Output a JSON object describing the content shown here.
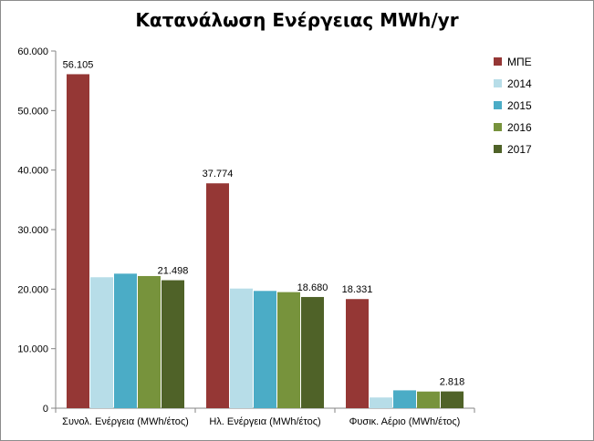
{
  "chart_data": {
    "type": "bar",
    "title": "Κατανάλωση Ενέργειας MWh/yr",
    "categories": [
      "Συνολ. Ενέργεια (MWh/έτος)",
      "Ηλ. Ενέργεια (MWh/έτος)",
      "Φυσικ. Αέριο (MWh/έτος)"
    ],
    "series": [
      {
        "name": "ΜΠΕ",
        "color": "#953735",
        "values": [
          56105,
          37774,
          18331
        ],
        "labels": [
          "56.105",
          "37.774",
          "18.331"
        ]
      },
      {
        "name": "2014",
        "color": "#b7dde8",
        "values": [
          22000,
          20100,
          1800
        ],
        "labels": [
          "",
          "",
          ""
        ]
      },
      {
        "name": "2015",
        "color": "#4bacc6",
        "values": [
          22600,
          19700,
          3000
        ],
        "labels": [
          "",
          "",
          ""
        ]
      },
      {
        "name": "2016",
        "color": "#77933c",
        "values": [
          22200,
          19500,
          2800
        ],
        "labels": [
          "",
          "",
          ""
        ]
      },
      {
        "name": "2017",
        "color": "#4f6228",
        "values": [
          21498,
          18680,
          2818
        ],
        "labels": [
          "21.498",
          "18.680",
          "2.818"
        ]
      }
    ],
    "ylim": [
      0,
      60000
    ],
    "yticks": [
      0,
      10000,
      20000,
      30000,
      40000,
      50000,
      60000
    ],
    "ytick_labels": [
      "0",
      "10.000",
      "20.000",
      "30.000",
      "40.000",
      "50.000",
      "60.000"
    ],
    "grid": false,
    "legend": "right"
  }
}
